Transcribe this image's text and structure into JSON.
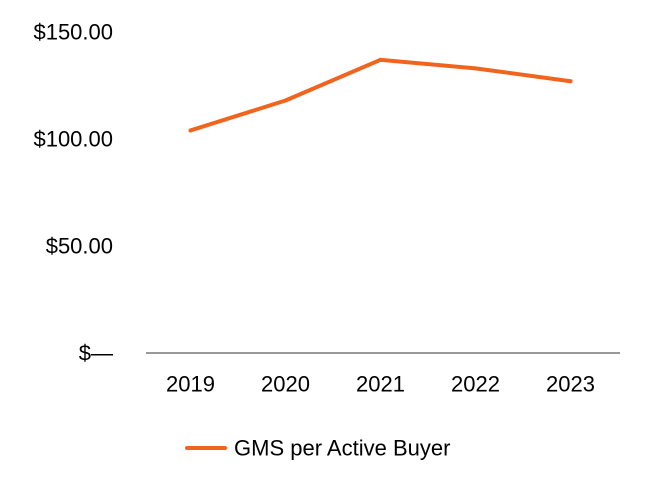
{
  "chart_data": {
    "type": "line",
    "title": "",
    "xlabel": "",
    "ylabel": "",
    "categories": [
      "2019",
      "2020",
      "2021",
      "2022",
      "2023"
    ],
    "y_ticks": [
      {
        "value": 0,
        "label": "$—"
      },
      {
        "value": 50,
        "label": "$50.00"
      },
      {
        "value": 100,
        "label": "$100.00"
      },
      {
        "value": 150,
        "label": "$150.00"
      }
    ],
    "ylim": [
      0,
      150
    ],
    "grid": false,
    "legend_position": "bottom",
    "series": [
      {
        "name": "GMS per Active Buyer",
        "color": "#F1641E",
        "values": [
          104,
          118,
          137,
          133,
          127
        ]
      }
    ],
    "axis_color": "#999999"
  }
}
